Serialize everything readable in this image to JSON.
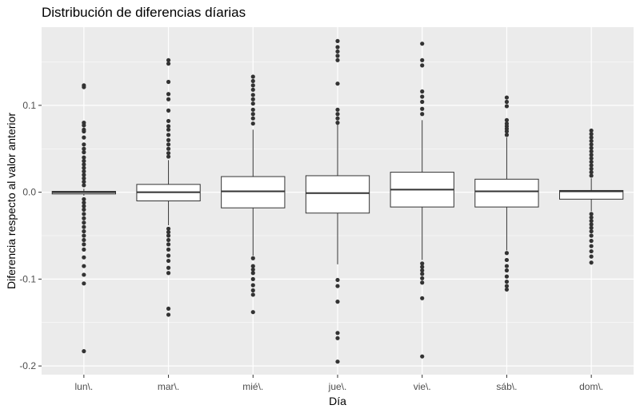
{
  "chart_data": {
    "type": "boxplot",
    "title": "Distribución de diferencias díarias",
    "xlabel": "Día",
    "ylabel": "Diferencia respecto al valor anterior",
    "categories": [
      "lun\\.",
      "mar\\.",
      "mié\\.",
      "jue\\.",
      "vie\\.",
      "sáb\\.",
      "dom\\."
    ],
    "y_ticks": [
      -0.2,
      -0.1,
      0.0,
      0.1
    ],
    "y_tick_labels": [
      "-0.2",
      "-0.1",
      "0.0",
      "0.1"
    ],
    "ylim": [
      -0.21,
      0.19
    ],
    "grid": true,
    "boxes": [
      {
        "category": "lun\\.",
        "q1": -0.002,
        "median": 0.0,
        "q3": 0.001,
        "whisker_low": -0.004,
        "whisker_high": 0.004,
        "outliers": [
          0.123,
          0.121,
          0.08,
          0.077,
          0.072,
          0.07,
          0.063,
          0.055,
          0.05,
          0.046,
          0.04,
          0.036,
          0.032,
          0.028,
          0.024,
          0.02,
          0.016,
          0.012,
          0.008,
          -0.008,
          -0.012,
          -0.016,
          -0.02,
          -0.025,
          -0.03,
          -0.035,
          -0.04,
          -0.045,
          -0.05,
          -0.055,
          -0.06,
          -0.066,
          -0.075,
          -0.085,
          -0.095,
          -0.105,
          -0.183
        ]
      },
      {
        "category": "mar\\.",
        "q1": -0.01,
        "median": 0.0,
        "q3": 0.009,
        "whisker_low": -0.038,
        "whisker_high": 0.037,
        "outliers": [
          0.152,
          0.148,
          0.127,
          0.113,
          0.107,
          0.094,
          0.082,
          0.076,
          0.072,
          0.066,
          0.06,
          0.055,
          0.05,
          0.045,
          0.041,
          -0.042,
          -0.046,
          -0.05,
          -0.055,
          -0.06,
          -0.066,
          -0.073,
          -0.079,
          -0.087,
          -0.093,
          -0.134,
          -0.141
        ]
      },
      {
        "category": "mié\\.",
        "q1": -0.018,
        "median": 0.001,
        "q3": 0.018,
        "whisker_low": -0.073,
        "whisker_high": 0.072,
        "outliers": [
          0.133,
          0.128,
          0.123,
          0.118,
          0.112,
          0.107,
          0.102,
          0.095,
          0.09,
          0.085,
          0.079,
          -0.076,
          -0.085,
          -0.089,
          -0.093,
          -0.1,
          -0.107,
          -0.113,
          -0.118,
          -0.138
        ]
      },
      {
        "category": "jue\\.",
        "q1": -0.024,
        "median": -0.001,
        "q3": 0.019,
        "whisker_low": -0.083,
        "whisker_high": 0.078,
        "outliers": [
          0.174,
          0.167,
          0.162,
          0.157,
          0.152,
          0.125,
          0.095,
          0.09,
          0.085,
          0.08,
          -0.101,
          -0.108,
          -0.126,
          -0.162,
          -0.168,
          -0.195
        ]
      },
      {
        "category": "vie\\.",
        "q1": -0.017,
        "median": 0.003,
        "q3": 0.023,
        "whisker_low": -0.078,
        "whisker_high": 0.083,
        "outliers": [
          0.171,
          0.152,
          0.146,
          0.116,
          0.11,
          0.104,
          0.096,
          0.09,
          -0.082,
          -0.086,
          -0.09,
          -0.094,
          -0.099,
          -0.104,
          -0.122,
          -0.189
        ]
      },
      {
        "category": "sáb\\.",
        "q1": -0.017,
        "median": 0.001,
        "q3": 0.015,
        "whisker_low": -0.067,
        "whisker_high": 0.063,
        "outliers": [
          0.109,
          0.104,
          0.099,
          0.083,
          0.079,
          0.076,
          0.073,
          0.07,
          0.066,
          -0.07,
          -0.078,
          -0.085,
          -0.09,
          -0.097,
          -0.103,
          -0.108,
          -0.112
        ]
      },
      {
        "category": "dom\\.",
        "q1": -0.008,
        "median": 0.001,
        "q3": 0.002,
        "whisker_low": -0.022,
        "whisker_high": 0.016,
        "outliers": [
          0.071,
          0.067,
          0.063,
          0.059,
          0.055,
          0.051,
          0.047,
          0.043,
          0.039,
          0.035,
          0.031,
          0.027,
          0.023,
          0.019,
          -0.025,
          -0.029,
          -0.033,
          -0.037,
          -0.041,
          -0.045,
          -0.05,
          -0.056,
          -0.062,
          -0.068,
          -0.074,
          -0.081
        ]
      }
    ]
  },
  "colors": {
    "panel_background": "#ebebeb",
    "grid_major": "#ffffff",
    "box_fill": "#ffffff",
    "box_stroke": "#333333",
    "outlier_color": "#333333"
  }
}
